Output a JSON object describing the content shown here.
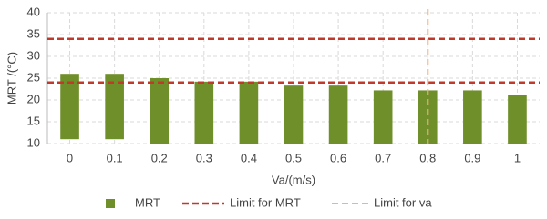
{
  "chart_data": {
    "type": "floating-bar",
    "x_label": "Va/(m/s)",
    "y_label": "MRT /(°C)",
    "x": [
      0,
      0.1,
      0.2,
      0.3,
      0.4,
      0.5,
      0.6,
      0.7,
      0.8,
      0.9,
      1
    ],
    "series": [
      {
        "name": "MRT",
        "color": "#6f8f2a",
        "values": [
          26,
          26,
          25,
          24.2,
          24.2,
          23.3,
          23.3,
          22.2,
          22.2,
          22.2,
          21.1
        ],
        "low": [
          11,
          11,
          10,
          10,
          10,
          10,
          10,
          10,
          10,
          10,
          10
        ]
      }
    ],
    "limit_y": {
      "name": "Limit for MRT",
      "color": "#c0392b",
      "values": [
        24,
        34
      ]
    },
    "limit_x": {
      "name": "Limit for va",
      "color": "#f4b183",
      "value": 0.8
    },
    "xlim": [
      -0.05,
      1.05
    ],
    "ylim": [
      10,
      40
    ],
    "yticks": [
      10,
      15,
      20,
      25,
      30,
      35,
      40
    ],
    "grid": true
  }
}
